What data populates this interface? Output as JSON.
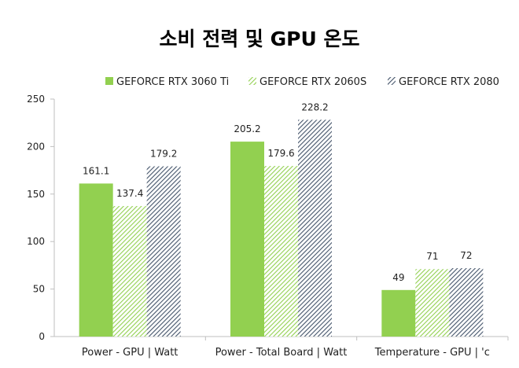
{
  "chart_data": {
    "type": "bar",
    "title": "소비 전력 및 GPU 온도",
    "xlabel": "",
    "ylabel": "",
    "categories": [
      "Power - GPU | Watt",
      "Power - Total Board | Watt",
      "Temperature - GPU | 'c"
    ],
    "series": [
      {
        "name": "GEFORCE RTX 3060 Ti",
        "values": [
          161.1,
          205.2,
          49
        ],
        "color": "#92d050",
        "pattern": "solid"
      },
      {
        "name": "GEFORCE RTX 2060S",
        "values": [
          137.4,
          179.6,
          71
        ],
        "color": "#92d050",
        "pattern": "diagonal-stripes"
      },
      {
        "name": "GEFORCE RTX 2080",
        "values": [
          179.2,
          228.2,
          72
        ],
        "color": "#44546a",
        "pattern": "diagonal-stripes"
      }
    ],
    "ylim": [
      0,
      250
    ],
    "yticks": [
      0,
      50,
      100,
      150,
      200,
      250
    ],
    "grid": false,
    "legend": "top"
  }
}
